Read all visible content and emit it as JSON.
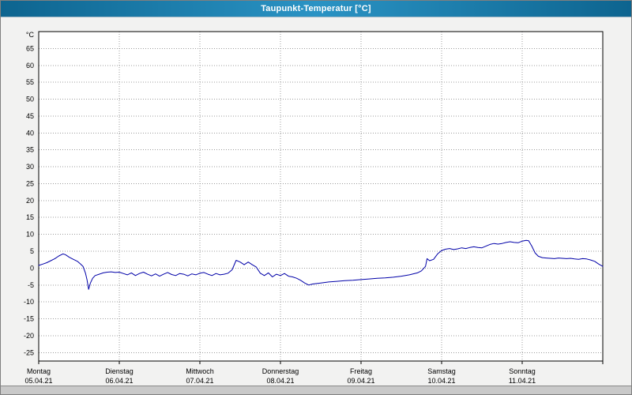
{
  "window": {
    "title": "Taupunkt-Temperatur [°C]"
  },
  "chart_data": {
    "type": "line",
    "title": "Taupunkt-Temperatur [°C]",
    "ylabel": "°C",
    "xlabel": "",
    "grid": true,
    "legend": "none",
    "ylim": [
      -27.5,
      70
    ],
    "y_ticks": [
      65,
      60,
      55,
      50,
      45,
      40,
      35,
      30,
      25,
      20,
      15,
      10,
      5,
      0,
      -5,
      -10,
      -15,
      -20,
      -25
    ],
    "x_range_days": [
      0,
      7
    ],
    "x_days": [
      {
        "name": "Montag",
        "date": "05.04.21"
      },
      {
        "name": "Dienstag",
        "date": "06.04.21"
      },
      {
        "name": "Mittwoch",
        "date": "07.04.21"
      },
      {
        "name": "Donnerstag",
        "date": "08.04.21"
      },
      {
        "name": "Freitag",
        "date": "09.04.21"
      },
      {
        "name": "Samstag",
        "date": "10.04.21"
      },
      {
        "name": "Sonntag",
        "date": "11.04.21"
      }
    ],
    "colors": {
      "line": "#0000a8",
      "grid": "#9c9c9c",
      "plot_bg": "#ffffff",
      "border": "#000000",
      "text": "#000000"
    },
    "series": [
      {
        "name": "Taupunkt-Temperatur",
        "color": "#0000a8",
        "points": [
          [
            0.0,
            0.8
          ],
          [
            0.05,
            1.2
          ],
          [
            0.1,
            1.6
          ],
          [
            0.15,
            2.2
          ],
          [
            0.2,
            2.8
          ],
          [
            0.25,
            3.6
          ],
          [
            0.3,
            4.2
          ],
          [
            0.33,
            4.0
          ],
          [
            0.38,
            3.2
          ],
          [
            0.43,
            2.6
          ],
          [
            0.48,
            2.0
          ],
          [
            0.52,
            1.2
          ],
          [
            0.55,
            0.5
          ],
          [
            0.58,
            -1.5
          ],
          [
            0.6,
            -3.5
          ],
          [
            0.62,
            -6.3
          ],
          [
            0.64,
            -4.5
          ],
          [
            0.67,
            -3.0
          ],
          [
            0.7,
            -2.2
          ],
          [
            0.75,
            -1.8
          ],
          [
            0.8,
            -1.4
          ],
          [
            0.85,
            -1.2
          ],
          [
            0.9,
            -1.1
          ],
          [
            0.95,
            -1.3
          ],
          [
            1.0,
            -1.2
          ],
          [
            1.05,
            -1.6
          ],
          [
            1.1,
            -2.0
          ],
          [
            1.15,
            -1.4
          ],
          [
            1.2,
            -2.2
          ],
          [
            1.25,
            -1.6
          ],
          [
            1.3,
            -1.2
          ],
          [
            1.35,
            -1.8
          ],
          [
            1.4,
            -2.3
          ],
          [
            1.45,
            -1.7
          ],
          [
            1.5,
            -2.4
          ],
          [
            1.55,
            -1.8
          ],
          [
            1.6,
            -1.3
          ],
          [
            1.65,
            -1.9
          ],
          [
            1.7,
            -2.2
          ],
          [
            1.75,
            -1.6
          ],
          [
            1.8,
            -1.8
          ],
          [
            1.85,
            -2.3
          ],
          [
            1.9,
            -1.7
          ],
          [
            1.95,
            -2.0
          ],
          [
            2.0,
            -1.5
          ],
          [
            2.05,
            -1.3
          ],
          [
            2.1,
            -1.8
          ],
          [
            2.15,
            -2.2
          ],
          [
            2.2,
            -1.6
          ],
          [
            2.25,
            -2.0
          ],
          [
            2.3,
            -1.8
          ],
          [
            2.35,
            -1.5
          ],
          [
            2.4,
            -0.5
          ],
          [
            2.45,
            2.3
          ],
          [
            2.5,
            1.8
          ],
          [
            2.55,
            1.0
          ],
          [
            2.6,
            1.8
          ],
          [
            2.65,
            1.0
          ],
          [
            2.7,
            0.3
          ],
          [
            2.75,
            -1.5
          ],
          [
            2.8,
            -2.2
          ],
          [
            2.85,
            -1.4
          ],
          [
            2.9,
            -2.6
          ],
          [
            2.95,
            -1.8
          ],
          [
            3.0,
            -2.2
          ],
          [
            3.05,
            -1.6
          ],
          [
            3.1,
            -2.4
          ],
          [
            3.15,
            -2.6
          ],
          [
            3.2,
            -3.0
          ],
          [
            3.25,
            -3.6
          ],
          [
            3.3,
            -4.4
          ],
          [
            3.35,
            -5.0
          ],
          [
            3.4,
            -4.7
          ],
          [
            3.5,
            -4.4
          ],
          [
            3.6,
            -4.1
          ],
          [
            3.7,
            -3.9
          ],
          [
            3.8,
            -3.7
          ],
          [
            3.9,
            -3.6
          ],
          [
            4.0,
            -3.4
          ],
          [
            4.1,
            -3.2
          ],
          [
            4.2,
            -3.0
          ],
          [
            4.3,
            -2.9
          ],
          [
            4.4,
            -2.7
          ],
          [
            4.5,
            -2.4
          ],
          [
            4.6,
            -2.0
          ],
          [
            4.7,
            -1.4
          ],
          [
            4.75,
            -0.8
          ],
          [
            4.8,
            0.5
          ],
          [
            4.82,
            2.8
          ],
          [
            4.85,
            2.2
          ],
          [
            4.9,
            2.6
          ],
          [
            4.95,
            4.2
          ],
          [
            5.0,
            5.2
          ],
          [
            5.05,
            5.6
          ],
          [
            5.1,
            5.8
          ],
          [
            5.15,
            5.5
          ],
          [
            5.2,
            5.7
          ],
          [
            5.25,
            6.0
          ],
          [
            5.3,
            5.8
          ],
          [
            5.35,
            6.1
          ],
          [
            5.4,
            6.3
          ],
          [
            5.45,
            6.1
          ],
          [
            5.5,
            6.0
          ],
          [
            5.55,
            6.5
          ],
          [
            5.6,
            7.0
          ],
          [
            5.65,
            7.3
          ],
          [
            5.7,
            7.1
          ],
          [
            5.75,
            7.3
          ],
          [
            5.8,
            7.6
          ],
          [
            5.85,
            7.8
          ],
          [
            5.9,
            7.6
          ],
          [
            5.95,
            7.5
          ],
          [
            6.0,
            8.0
          ],
          [
            6.05,
            8.2
          ],
          [
            6.08,
            8.1
          ],
          [
            6.12,
            6.5
          ],
          [
            6.16,
            4.5
          ],
          [
            6.2,
            3.5
          ],
          [
            6.25,
            3.1
          ],
          [
            6.3,
            3.0
          ],
          [
            6.35,
            2.9
          ],
          [
            6.4,
            2.8
          ],
          [
            6.45,
            3.0
          ],
          [
            6.5,
            2.9
          ],
          [
            6.55,
            2.8
          ],
          [
            6.6,
            2.9
          ],
          [
            6.65,
            2.7
          ],
          [
            6.7,
            2.6
          ],
          [
            6.75,
            2.8
          ],
          [
            6.8,
            2.7
          ],
          [
            6.85,
            2.4
          ],
          [
            6.9,
            2.0
          ],
          [
            6.95,
            1.2
          ],
          [
            7.0,
            0.5
          ]
        ]
      }
    ]
  }
}
